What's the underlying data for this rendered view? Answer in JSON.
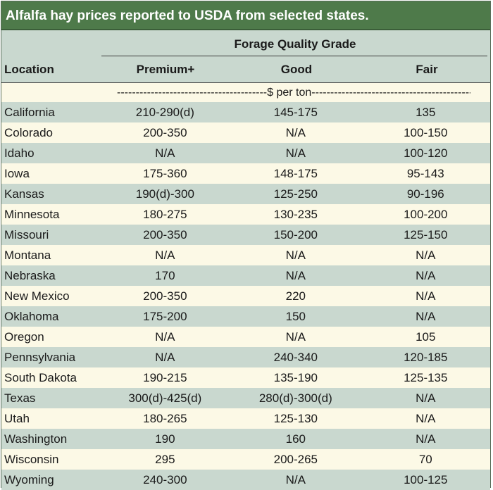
{
  "title": "Alfalfa hay prices reported to USDA from selected states.",
  "header": {
    "group": "Forage Quality Grade",
    "location": "Location",
    "premium": "Premium+",
    "good": "Good",
    "fair": "Fair"
  },
  "units": "----------------------------------------$ per ton--------------------------------------------",
  "rows": [
    {
      "location": "California",
      "premium": "210-290(d)",
      "good": "145-175",
      "fair": "135"
    },
    {
      "location": "Colorado",
      "premium": "200-350",
      "good": "N/A",
      "fair": "100-150"
    },
    {
      "location": "Idaho",
      "premium": "N/A",
      "good": "N/A",
      "fair": "100-120"
    },
    {
      "location": "Iowa",
      "premium": "175-360",
      "good": "148-175",
      "fair": "95-143"
    },
    {
      "location": "Kansas",
      "premium": "190(d)-300",
      "good": "125-250",
      "fair": "90-196"
    },
    {
      "location": "Minnesota",
      "premium": "180-275",
      "good": "130-235",
      "fair": "100-200"
    },
    {
      "location": "Missouri",
      "premium": "200-350",
      "good": "150-200",
      "fair": "125-150"
    },
    {
      "location": "Montana",
      "premium": "N/A",
      "good": "N/A",
      "fair": "N/A"
    },
    {
      "location": "Nebraska",
      "premium": "170",
      "good": "N/A",
      "fair": "N/A"
    },
    {
      "location": "New Mexico",
      "premium": "200-350",
      "good": "220",
      "fair": "N/A"
    },
    {
      "location": "Oklahoma",
      "premium": "175-200",
      "good": "150",
      "fair": "N/A"
    },
    {
      "location": "Oregon",
      "premium": "N/A",
      "good": "N/A",
      "fair": "105"
    },
    {
      "location": "Pennsylvania",
      "premium": "N/A",
      "good": "240-340",
      "fair": "120-185"
    },
    {
      "location": "South Dakota",
      "premium": "190-215",
      "good": "135-190",
      "fair": "125-135"
    },
    {
      "location": "Texas",
      "premium": "300(d)-425(d)",
      "good": "280(d)-300(d)",
      "fair": "N/A"
    },
    {
      "location": "Utah",
      "premium": "180-265",
      "good": "125-130",
      "fair": "N/A"
    },
    {
      "location": "Washington",
      "premium": "190",
      "good": "160",
      "fair": "N/A"
    },
    {
      "location": "Wisconsin",
      "premium": "295",
      "good": "200-265",
      "fair": "70"
    },
    {
      "location": "Wyoming",
      "premium": "240-300",
      "good": "N/A",
      "fair": "100-125"
    }
  ]
}
